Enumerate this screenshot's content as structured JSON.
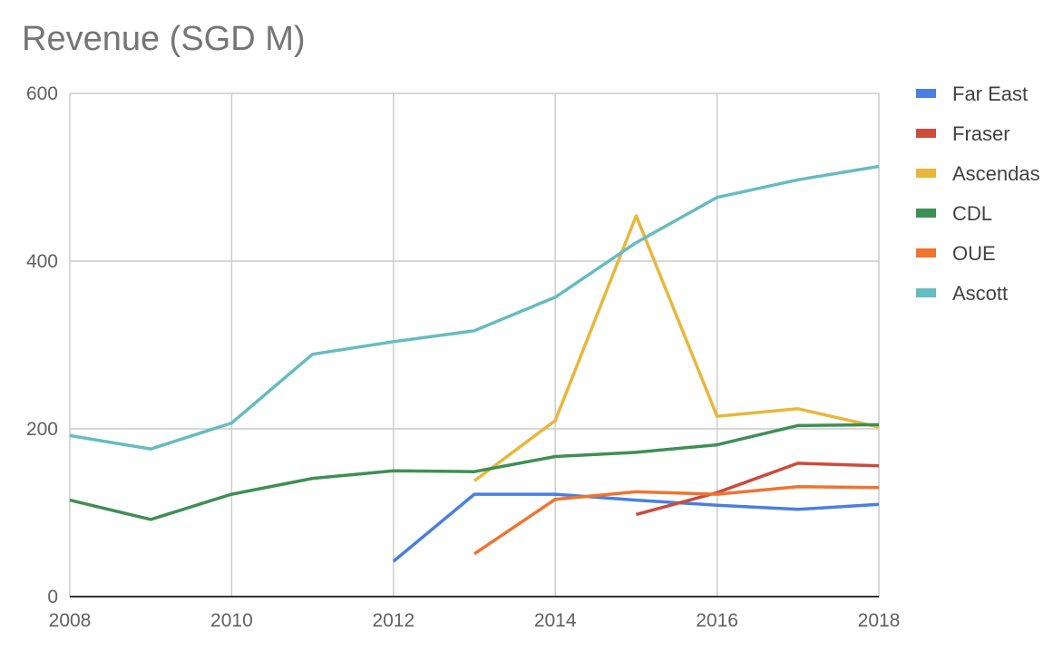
{
  "chart_data": {
    "type": "line",
    "title": "Revenue (SGD M)",
    "xlabel": "",
    "ylabel": "",
    "xlim": [
      2008,
      2018
    ],
    "ylim": [
      0,
      600
    ],
    "x_ticks": [
      2008,
      2010,
      2012,
      2014,
      2016,
      2018
    ],
    "y_ticks": [
      0,
      200,
      400,
      600
    ],
    "grid": true,
    "legend_position": "right",
    "series": [
      {
        "name": "Far East",
        "color": "#4a7fe0",
        "points": [
          [
            2012,
            42
          ],
          [
            2013,
            122
          ],
          [
            2014,
            122
          ],
          [
            2015,
            115
          ],
          [
            2016,
            109
          ],
          [
            2017,
            104
          ],
          [
            2018,
            110
          ]
        ]
      },
      {
        "name": "Fraser",
        "color": "#cc4b3c",
        "points": [
          [
            2015,
            98
          ],
          [
            2016,
            124
          ],
          [
            2017,
            159
          ],
          [
            2018,
            156
          ]
        ]
      },
      {
        "name": "Ascendas",
        "color": "#e8b73c",
        "points": [
          [
            2013,
            138
          ],
          [
            2014,
            210
          ],
          [
            2015,
            454
          ],
          [
            2016,
            215
          ],
          [
            2017,
            224
          ],
          [
            2018,
            202
          ]
        ]
      },
      {
        "name": "CDL",
        "color": "#3e8f54",
        "points": [
          [
            2008,
            115
          ],
          [
            2009,
            92
          ],
          [
            2010,
            122
          ],
          [
            2011,
            141
          ],
          [
            2012,
            150
          ],
          [
            2013,
            149
          ],
          [
            2014,
            167
          ],
          [
            2015,
            172
          ],
          [
            2016,
            181
          ],
          [
            2017,
            204
          ],
          [
            2018,
            205
          ]
        ]
      },
      {
        "name": "OUE",
        "color": "#ee7430",
        "points": [
          [
            2013,
            51
          ],
          [
            2014,
            116
          ],
          [
            2015,
            125
          ],
          [
            2016,
            122
          ],
          [
            2017,
            131
          ],
          [
            2018,
            130
          ]
        ]
      },
      {
        "name": "Ascott",
        "color": "#66bcc0",
        "points": [
          [
            2008,
            192
          ],
          [
            2009,
            176
          ],
          [
            2010,
            207
          ],
          [
            2011,
            289
          ],
          [
            2012,
            304
          ],
          [
            2013,
            317
          ],
          [
            2014,
            357
          ],
          [
            2015,
            422
          ],
          [
            2016,
            476
          ],
          [
            2017,
            497
          ],
          [
            2018,
            513
          ]
        ]
      }
    ]
  }
}
